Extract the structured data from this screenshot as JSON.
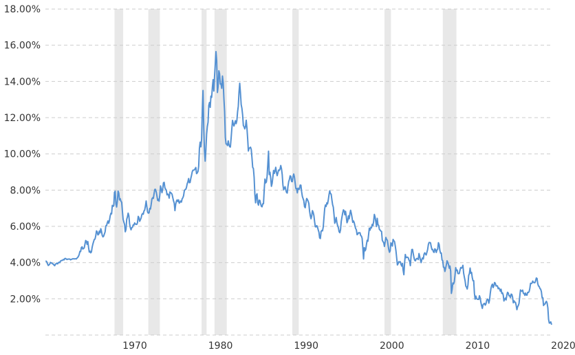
{
  "chart_data": {
    "type": "line",
    "title": "",
    "legend": "none",
    "grid": "horizontal-dashed",
    "plot_background": "#ffffff",
    "colors": {
      "line": "#5591d2",
      "grid": "#cccccc",
      "recession_band": "#e8e8e8",
      "tick_text": "#333333"
    },
    "y_axis": {
      "range": [
        0,
        18
      ],
      "unit": "%",
      "ticks": [
        2,
        4,
        6,
        8,
        10,
        12,
        14,
        16,
        18
      ],
      "tick_labels": [
        "2.00%",
        "4.00%",
        "6.00%",
        "8.00%",
        "10.00%",
        "12.00%",
        "14.00%",
        "16.00%",
        "18.00%"
      ]
    },
    "x_axis": {
      "range": [
        1962,
        2020.6
      ],
      "ticks": [
        1970,
        1980,
        1990,
        2000,
        2010,
        2020
      ],
      "tick_labels": [
        "1970",
        "1980",
        "1990",
        "2000",
        "2010",
        "2020"
      ]
    },
    "recession_bands": [
      [
        1969.92,
        1970.92
      ],
      [
        1973.83,
        1975.17
      ],
      [
        1980.0,
        1980.58
      ],
      [
        1981.5,
        1982.92
      ],
      [
        1990.5,
        1991.25
      ],
      [
        2001.17,
        2001.92
      ],
      [
        2007.92,
        2009.5
      ]
    ],
    "series": [
      {
        "x_start": 1962.0,
        "x_step": 0.0833333,
        "unit": "%",
        "values": [
          4.08,
          4.04,
          3.93,
          3.84,
          3.87,
          3.91,
          4.01,
          3.98,
          3.98,
          3.93,
          3.92,
          3.86,
          3.83,
          3.92,
          3.93,
          3.97,
          3.93,
          3.99,
          4.02,
          4.0,
          4.08,
          4.11,
          4.12,
          4.13,
          4.17,
          4.15,
          4.22,
          4.23,
          4.2,
          4.17,
          4.19,
          4.19,
          4.2,
          4.19,
          4.15,
          4.18,
          4.19,
          4.21,
          4.21,
          4.2,
          4.21,
          4.21,
          4.2,
          4.25,
          4.29,
          4.35,
          4.45,
          4.62,
          4.61,
          4.83,
          4.87,
          4.75,
          4.78,
          4.81,
          5.02,
          5.22,
          5.18,
          5.01,
          5.16,
          4.84,
          4.58,
          4.63,
          4.54,
          4.59,
          4.85,
          5.02,
          5.16,
          5.28,
          5.3,
          5.48,
          5.75,
          5.7,
          5.53,
          5.56,
          5.74,
          5.64,
          5.87,
          5.72,
          5.5,
          5.42,
          5.46,
          5.58,
          5.7,
          6.03,
          6.04,
          6.19,
          6.3,
          6.17,
          6.32,
          6.57,
          6.72,
          6.69,
          7.16,
          7.1,
          7.14,
          7.88,
          7.94,
          7.24,
          7.07,
          7.39,
          7.95,
          7.84,
          7.46,
          7.53,
          7.39,
          7.33,
          6.84,
          6.39,
          6.24,
          6.11,
          5.7,
          5.83,
          6.39,
          6.52,
          6.73,
          6.58,
          6.14,
          5.93,
          5.81,
          5.93,
          5.95,
          6.08,
          6.07,
          6.19,
          6.13,
          6.11,
          6.11,
          6.21,
          6.55,
          6.48,
          6.28,
          6.36,
          6.46,
          6.64,
          6.71,
          6.67,
          6.85,
          6.9,
          7.13,
          7.4,
          7.09,
          6.79,
          6.73,
          6.74,
          6.99,
          6.96,
          7.21,
          7.51,
          7.58,
          7.54,
          7.81,
          8.04,
          8.04,
          7.9,
          7.68,
          7.43,
          7.5,
          7.39,
          7.73,
          8.23,
          8.06,
          7.86,
          8.06,
          8.4,
          8.43,
          8.14,
          8.05,
          8.0,
          7.74,
          7.79,
          7.73,
          7.56,
          7.9,
          7.86,
          7.83,
          7.77,
          7.59,
          7.41,
          7.29,
          6.87,
          7.21,
          7.39,
          7.46,
          7.37,
          7.46,
          7.28,
          7.33,
          7.4,
          7.34,
          7.52,
          7.58,
          7.69,
          7.96,
          8.03,
          8.04,
          8.15,
          8.35,
          8.46,
          8.64,
          8.41,
          8.42,
          8.64,
          8.81,
          9.01,
          9.1,
          9.1,
          9.12,
          9.18,
          9.25,
          8.91,
          8.95,
          9.03,
          9.33,
          10.3,
          10.65,
          10.39,
          10.8,
          12.41,
          13.5,
          11.47,
          10.18,
          9.6,
          10.25,
          11.1,
          11.51,
          11.75,
          12.68,
          12.84,
          12.57,
          13.19,
          13.12,
          13.68,
          14.1,
          13.47,
          14.28,
          14.94,
          15.65,
          15.15,
          13.39,
          13.72,
          14.59,
          14.43,
          13.86,
          13.87,
          13.62,
          14.3,
          13.95,
          13.06,
          12.34,
          10.91,
          10.55,
          10.54,
          10.46,
          10.72,
          10.51,
          10.4,
          10.38,
          10.85,
          11.38,
          11.85,
          11.65,
          11.54,
          11.69,
          11.83,
          11.67,
          11.84,
          12.32,
          12.63,
          13.41,
          13.9,
          13.36,
          12.72,
          12.52,
          12.16,
          11.57,
          11.5,
          11.38,
          11.51,
          11.86,
          11.43,
          10.85,
          10.16,
          10.31,
          10.33,
          10.37,
          10.24,
          9.78,
          9.26,
          9.19,
          8.7,
          7.78,
          7.3,
          7.71,
          7.8,
          7.3,
          7.17,
          7.45,
          7.43,
          7.25,
          7.11,
          7.08,
          7.25,
          7.25,
          8.02,
          8.61,
          8.4,
          8.45,
          8.76,
          9.42,
          10.15,
          8.86,
          8.99,
          8.67,
          8.21,
          8.37,
          8.72,
          9.09,
          8.92,
          9.06,
          9.26,
          8.98,
          8.8,
          8.96,
          9.11,
          9.09,
          9.17,
          9.36,
          9.18,
          8.86,
          8.28,
          8.02,
          8.11,
          8.19,
          8.01,
          7.87,
          7.84,
          8.21,
          8.47,
          8.59,
          8.79,
          8.76,
          8.48,
          8.47,
          8.75,
          8.89,
          8.72,
          8.39,
          8.08,
          8.09,
          7.85,
          8.11,
          8.04,
          8.07,
          8.28,
          8.27,
          7.9,
          7.65,
          7.53,
          7.42,
          7.09,
          7.03,
          7.34,
          7.54,
          7.48,
          7.39,
          7.26,
          6.84,
          6.59,
          6.42,
          6.59,
          6.87,
          6.77,
          6.6,
          6.26,
          5.98,
          5.97,
          6.04,
          5.96,
          5.81,
          5.68,
          5.36,
          5.33,
          5.72,
          5.77,
          5.75,
          5.97,
          6.48,
          6.97,
          7.18,
          7.1,
          7.3,
          7.24,
          7.46,
          7.74,
          7.96,
          7.81,
          7.78,
          7.47,
          7.2,
          7.06,
          6.63,
          6.17,
          6.28,
          6.49,
          6.2,
          6.04,
          5.93,
          5.71,
          5.65,
          5.81,
          6.27,
          6.51,
          6.74,
          6.91,
          6.87,
          6.64,
          6.83,
          6.53,
          6.2,
          6.3,
          6.58,
          6.42,
          6.69,
          6.89,
          6.71,
          6.49,
          6.22,
          6.3,
          6.21,
          6.03,
          5.88,
          5.81,
          5.54,
          5.57,
          5.65,
          5.64,
          5.65,
          5.5,
          5.46,
          5.34,
          4.81,
          4.2,
          4.83,
          4.65,
          4.72,
          5.0,
          5.23,
          5.18,
          5.54,
          5.9,
          5.79,
          5.94,
          5.92,
          6.11,
          6.03,
          6.28,
          6.66,
          6.52,
          6.26,
          5.99,
          6.44,
          6.1,
          6.05,
          5.83,
          5.8,
          5.74,
          5.72,
          5.24,
          5.16,
          5.1,
          4.89,
          5.14,
          5.39,
          5.28,
          5.24,
          4.97,
          4.73,
          4.57,
          4.65,
          5.09,
          5.04,
          4.91,
          5.28,
          5.21,
          5.16,
          4.93,
          4.65,
          4.26,
          3.87,
          3.94,
          4.05,
          4.03,
          4.05,
          3.9,
          3.81,
          3.96,
          3.57,
          3.33,
          3.98,
          4.45,
          4.27,
          4.29,
          4.3,
          4.27,
          4.15,
          4.08,
          3.83,
          4.35,
          4.72,
          4.73,
          4.5,
          4.28,
          4.13,
          4.1,
          4.19,
          4.23,
          4.22,
          4.17,
          4.5,
          4.34,
          4.14,
          4.0,
          4.18,
          4.26,
          4.2,
          4.46,
          4.54,
          4.47,
          4.42,
          4.57,
          4.72,
          4.99,
          5.11,
          5.11,
          5.09,
          4.88,
          4.72,
          4.73,
          4.6,
          4.56,
          4.76,
          4.72,
          4.56,
          4.69,
          4.75,
          5.1,
          5.0,
          4.67,
          4.52,
          4.53,
          4.15,
          4.1,
          3.74,
          3.74,
          3.51,
          3.68,
          3.88,
          4.1,
          4.01,
          3.89,
          3.69,
          3.81,
          3.53,
          2.3,
          2.52,
          2.87,
          2.82,
          2.93,
          3.29,
          3.72,
          3.56,
          3.59,
          3.4,
          3.39,
          3.4,
          3.59,
          3.73,
          3.69,
          3.73,
          3.85,
          3.42,
          3.2,
          3.01,
          2.7,
          2.65,
          2.54,
          2.76,
          3.29,
          3.39,
          3.7,
          3.41,
          3.46,
          3.17,
          3.0,
          3.0,
          2.3,
          1.98,
          2.15,
          2.01,
          1.98,
          1.97,
          1.97,
          2.17,
          2.05,
          1.8,
          1.62,
          1.47,
          1.68,
          1.72,
          1.75,
          1.65,
          1.72,
          1.91,
          1.98,
          1.96,
          1.76,
          1.93,
          2.3,
          2.58,
          2.74,
          2.81,
          2.62,
          2.72,
          2.9,
          2.86,
          2.71,
          2.72,
          2.71,
          2.56,
          2.6,
          2.54,
          2.42,
          2.53,
          2.3,
          2.33,
          2.21,
          1.88,
          1.98,
          2.04,
          1.94,
          2.2,
          2.36,
          2.32,
          2.17,
          2.17,
          2.07,
          2.26,
          2.24,
          2.09,
          1.78,
          1.89,
          1.81,
          1.81,
          1.64,
          1.4,
          1.56,
          1.63,
          1.76,
          2.14,
          2.49,
          2.43,
          2.42,
          2.48,
          2.3,
          2.3,
          2.19,
          2.32,
          2.21,
          2.2,
          2.36,
          2.35,
          2.4,
          2.58,
          2.86,
          2.84,
          2.87,
          2.98,
          2.91,
          2.89,
          2.89,
          3.0,
          3.15,
          3.12,
          2.83,
          2.71,
          2.68,
          2.57,
          2.53,
          2.4,
          2.07,
          2.06,
          1.63,
          1.7,
          1.71,
          1.81,
          1.86,
          1.76,
          1.5,
          0.87,
          0.66,
          0.67,
          0.73,
          0.6
        ]
      }
    ]
  }
}
